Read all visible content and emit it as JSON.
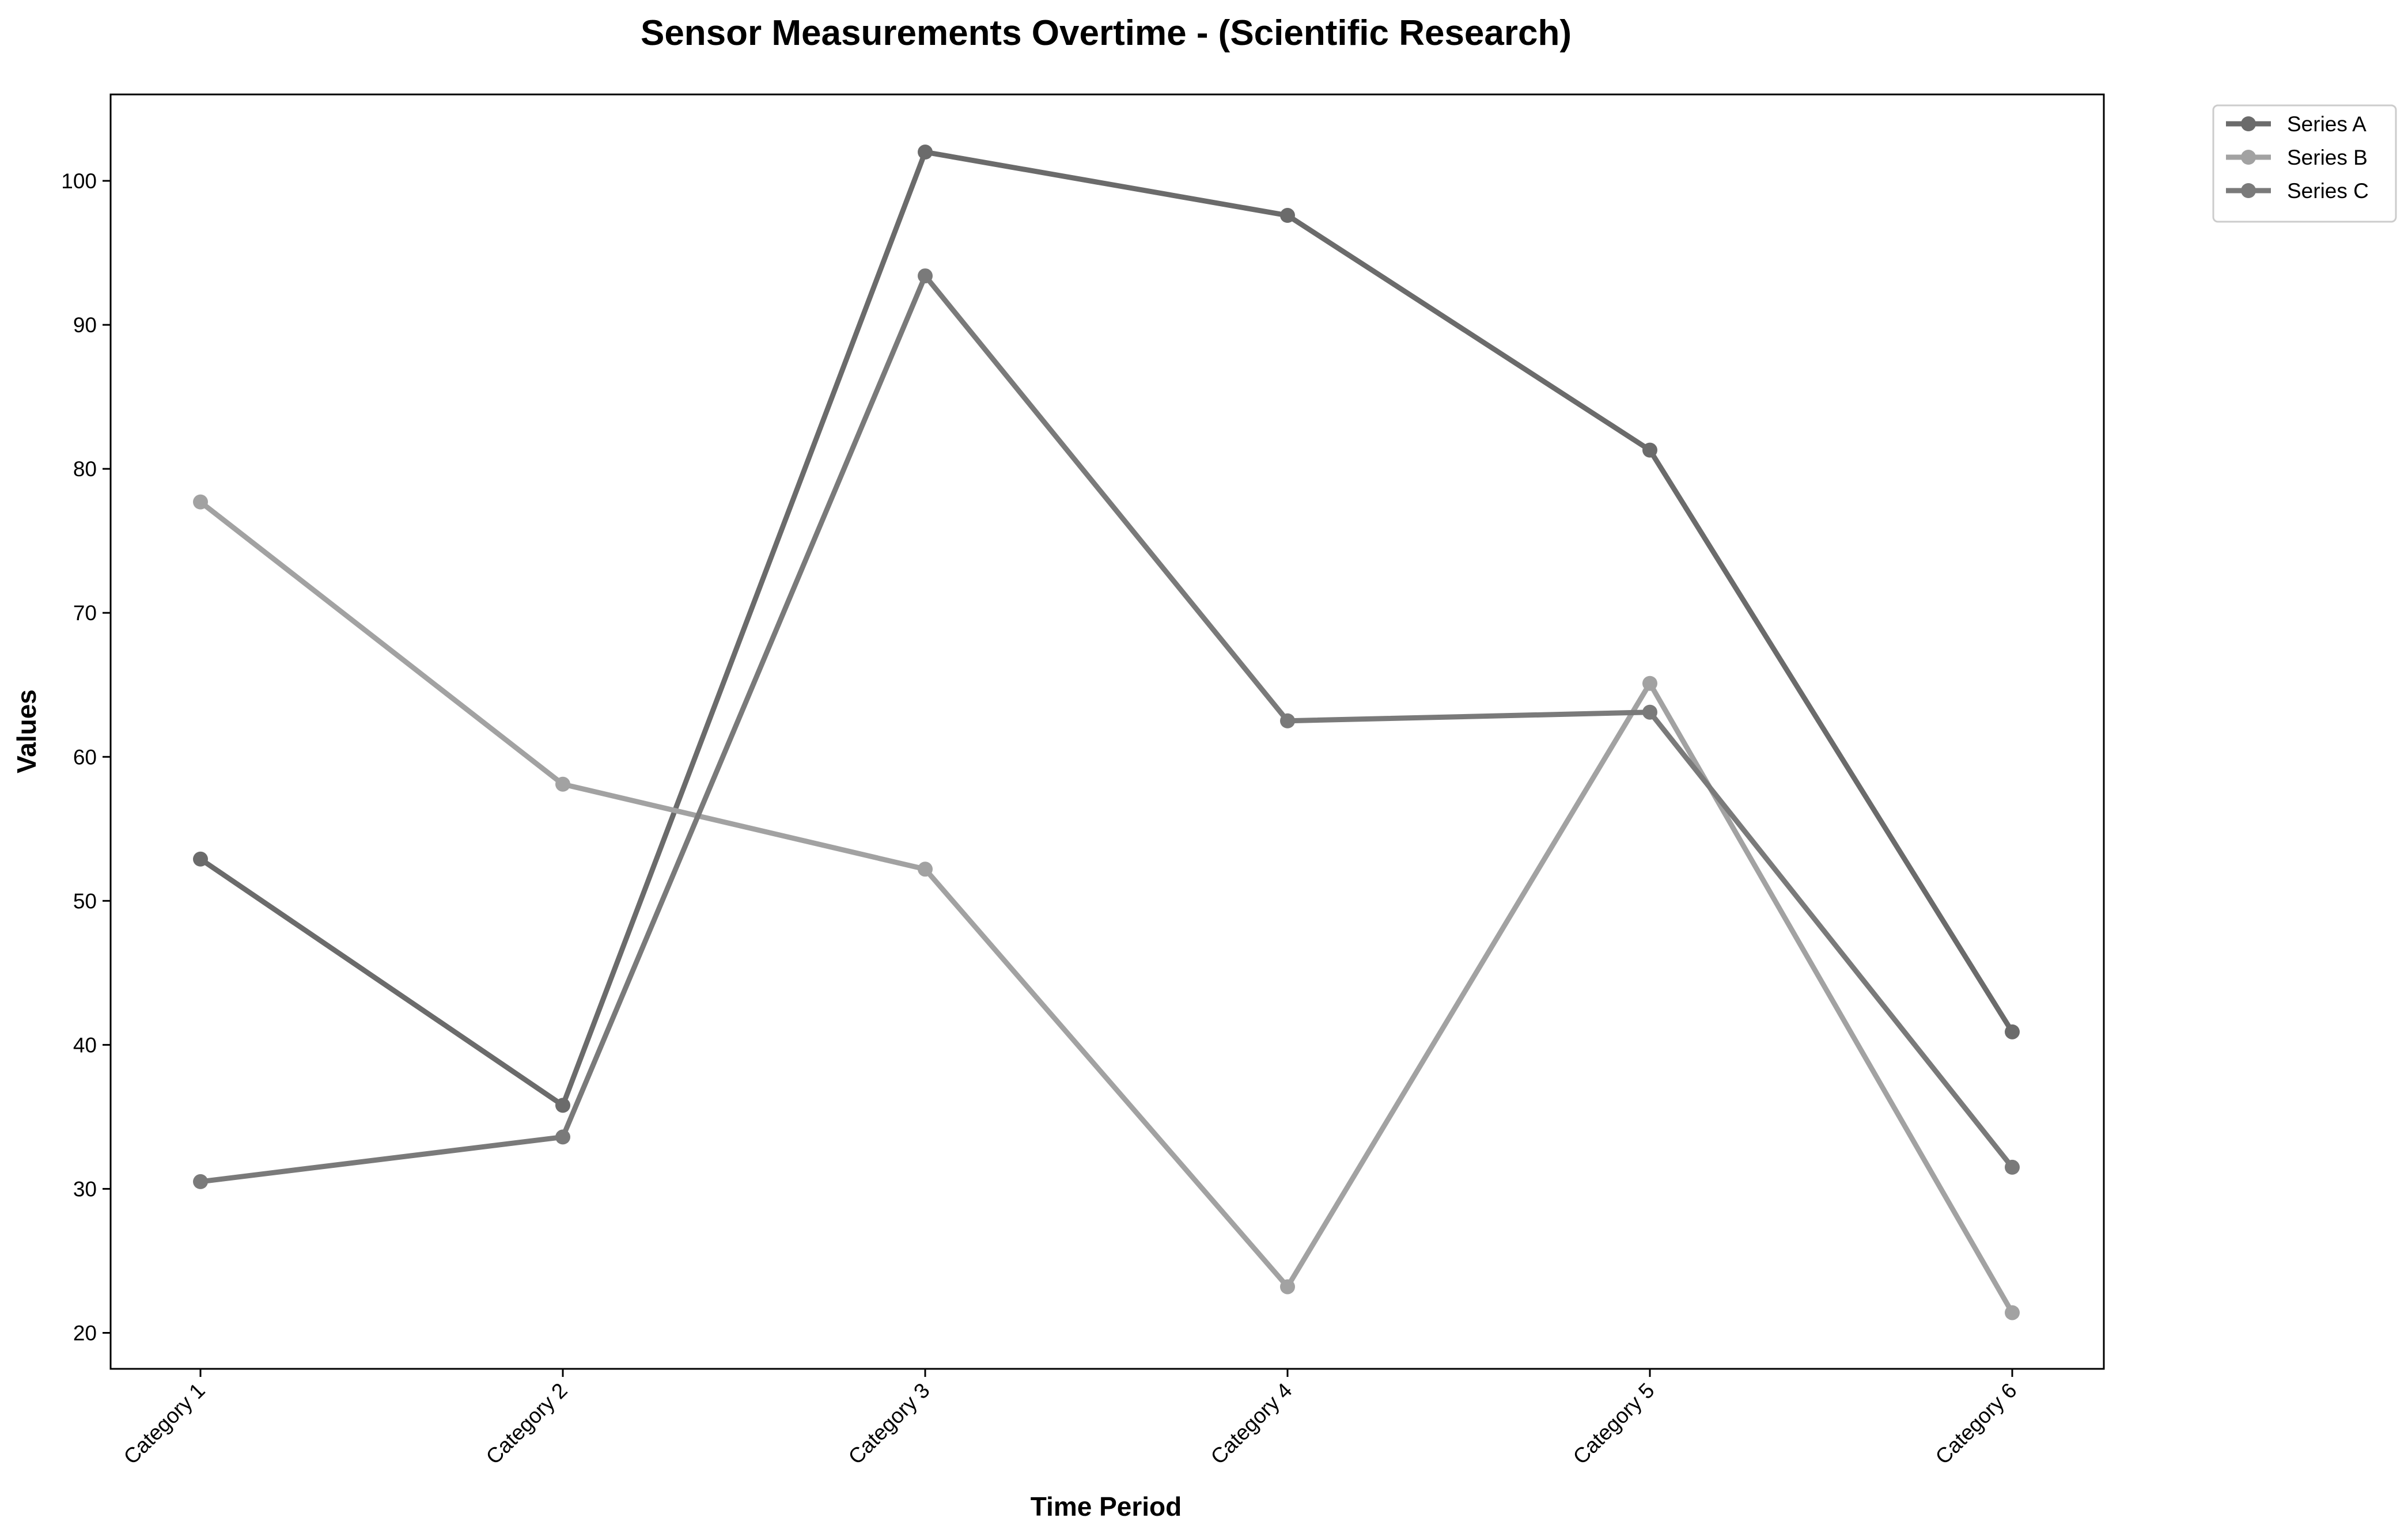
{
  "chart_data": {
    "type": "line",
    "title": "Sensor Measurements Overtime - (Scientific Research)",
    "xlabel": "Time Period",
    "ylabel": "Values",
    "categories": [
      "Category 1",
      "Category 2",
      "Category 3",
      "Category 4",
      "Category 5",
      "Category 6"
    ],
    "ylim": [
      17.5,
      106
    ],
    "yticks": [
      20,
      30,
      40,
      50,
      60,
      70,
      80,
      90,
      100
    ],
    "grid": false,
    "legend_position": "outside-top-right",
    "series": [
      {
        "name": "Series A",
        "color": "#6b6b6b",
        "values": [
          52.9,
          35.8,
          102.0,
          97.6,
          81.3,
          40.9
        ]
      },
      {
        "name": "Series B",
        "color": "#a2a2a2",
        "values": [
          77.7,
          58.1,
          52.2,
          23.2,
          65.1,
          21.4
        ]
      },
      {
        "name": "Series C",
        "color": "#7a7a7a",
        "values": [
          30.5,
          33.6,
          93.4,
          62.5,
          63.1,
          31.5
        ]
      }
    ]
  }
}
